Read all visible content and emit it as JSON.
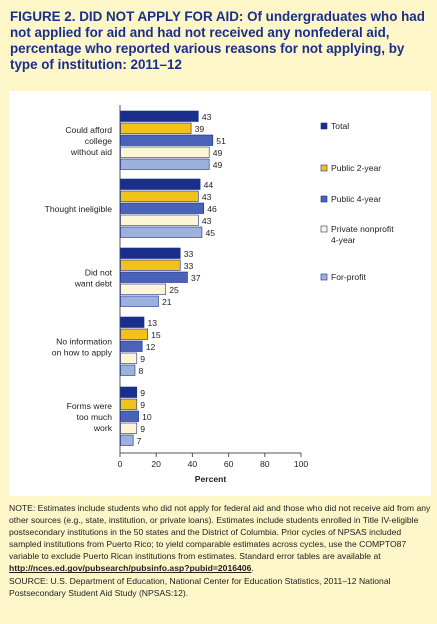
{
  "figure": {
    "title": "FIGURE 2. DID NOT APPLY FOR AID: Of undergraduates who had not applied for aid and had not received any nonfederal aid, percentage who reported various reasons for not applying, by type of institution: 2011–12"
  },
  "note": {
    "text_before_link": "NOTE: Estimates include students who did not apply for federal aid and those who did not receive aid from any other sources (e.g., state, institution, or private loans). Estimates include students enrolled in Title IV-eligible postsecondary institutions in the 50 states and the District of Columbia. Prior cycles of NPSAS included sampled institutions from Puerto Rico; to yield comparable estimates across cycles, use the COMPTO87 variable to exclude Puerto Rican institutions from estimates. Standard error tables are available at ",
    "link_text": "http://nces.ed.gov/pubsearch/pubsinfo.asp?pubid=2016406",
    "text_after_link": ".",
    "source": "SOURCE: U.S. Department of Education, National Center for Education Statistics, 2011–12 National Postsecondary Student Aid Study (NPSAS:12)."
  },
  "chart_data": {
    "type": "bar",
    "orientation": "horizontal",
    "categories": [
      [
        "Could afford",
        "college",
        "without aid"
      ],
      [
        "Thought ineligible"
      ],
      [
        "Did not",
        "want debt"
      ],
      [
        "No information",
        "on how to apply"
      ],
      [
        "Forms were",
        "too much",
        "work"
      ]
    ],
    "series": [
      {
        "name": "Total",
        "color": "#1a2f8c",
        "values": [
          43,
          44,
          33,
          13,
          9
        ]
      },
      {
        "name": "Public 2-year",
        "color": "#f2c21c",
        "values": [
          39,
          43,
          33,
          15,
          9
        ]
      },
      {
        "name": "Public 4-year",
        "color": "#4a63b8",
        "values": [
          51,
          46,
          37,
          12,
          10
        ]
      },
      {
        "name": "Private nonprofit 4-year",
        "color": "#fdf6d6",
        "values": [
          49,
          43,
          25,
          9,
          9
        ]
      },
      {
        "name": "For-profit",
        "color": "#9db0de",
        "values": [
          49,
          45,
          21,
          8,
          7
        ]
      }
    ],
    "legend_labels": [
      [
        "Total"
      ],
      [
        "Public 2-year"
      ],
      [
        "Public 4-year"
      ],
      [
        "Private nonprofit",
        "4-year"
      ],
      [
        "For-profit"
      ]
    ],
    "xlabel": "Percent",
    "xlim": [
      0,
      100
    ],
    "xticks": [
      0,
      20,
      40,
      60,
      80,
      100
    ],
    "grid": false,
    "legend_position": "right"
  }
}
